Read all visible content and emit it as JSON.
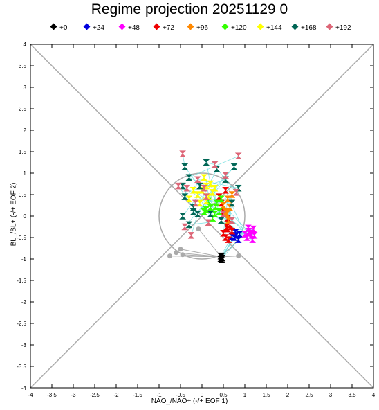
{
  "chart_data": {
    "type": "scatter",
    "title": "Regime projection 20251129 0",
    "xlabel": "NAO_/NAO+ (-/+ EOF 1)",
    "ylabel": "BL_/BL+ (-/+ EOF 2)",
    "xlim": [
      -4,
      4
    ],
    "ylim": [
      -4,
      4
    ],
    "xticks": [
      "-4",
      "-3.5",
      "-3",
      "-2.5",
      "-2",
      "-1.5",
      "-1",
      "-0.5",
      "0",
      "0.5",
      "1",
      "1.5",
      "2",
      "2.5",
      "3",
      "3.5",
      "4"
    ],
    "yticks": [
      "4",
      "3.5",
      "3",
      "2.5",
      "2",
      "1.5",
      "1",
      "0.5",
      "0",
      "-0.5",
      "-1",
      "-1.5",
      "-2",
      "-2.5",
      "-3",
      "-3.5",
      "-4"
    ],
    "legend_position": "top",
    "reference_circle_radius": 1,
    "series": [
      {
        "name": "+0",
        "color": "#000000",
        "points": [
          [
            0.45,
            -0.95
          ],
          [
            0.43,
            -1.0
          ],
          [
            0.47,
            -0.98
          ],
          [
            0.44,
            -0.93
          ],
          [
            0.46,
            -1.02
          ]
        ]
      },
      {
        "name": "+24",
        "color": "#0000dd",
        "points": [
          [
            0.75,
            -0.5
          ],
          [
            0.8,
            -0.45
          ],
          [
            0.85,
            -0.55
          ],
          [
            0.7,
            -0.48
          ],
          [
            0.78,
            -0.38
          ],
          [
            0.88,
            -0.42
          ]
        ]
      },
      {
        "name": "+48",
        "color": "#ff00ff",
        "points": [
          [
            1.1,
            -0.35
          ],
          [
            1.15,
            -0.45
          ],
          [
            1.2,
            -0.3
          ],
          [
            1.05,
            -0.5
          ],
          [
            1.18,
            -0.55
          ],
          [
            1.12,
            -0.4
          ],
          [
            1.22,
            -0.45
          ],
          [
            1.08,
            -0.28
          ],
          [
            1.0,
            -0.42
          ]
        ]
      },
      {
        "name": "+72",
        "color": "#ee0000",
        "points": [
          [
            0.5,
            -0.4
          ],
          [
            0.6,
            -0.3
          ],
          [
            0.55,
            -0.5
          ],
          [
            0.65,
            -0.2
          ],
          [
            0.5,
            0.1
          ],
          [
            0.45,
            0.3
          ],
          [
            0.6,
            -0.05
          ],
          [
            0.7,
            -0.35
          ],
          [
            0.55,
            0.6
          ],
          [
            0.4,
            0.45
          ],
          [
            0.62,
            -0.55
          ],
          [
            0.58,
            -0.25
          ]
        ]
      },
      {
        "name": "+96",
        "color": "#ff8800",
        "points": [
          [
            0.6,
            0.4
          ],
          [
            0.65,
            0.2
          ],
          [
            0.55,
            0.1
          ],
          [
            0.7,
            0.5
          ],
          [
            0.62,
            -0.1
          ],
          [
            0.5,
            0.25
          ],
          [
            0.68,
            0.3
          ],
          [
            0.58,
            0.05
          ]
        ]
      },
      {
        "name": "+120",
        "color": "#33ff00",
        "points": [
          [
            0.2,
            0.2
          ],
          [
            0.3,
            0.05
          ],
          [
            0.1,
            0.15
          ],
          [
            0.35,
            0.3
          ],
          [
            0.4,
            0.1
          ],
          [
            0.25,
            -0.05
          ],
          [
            0.15,
            0.35
          ],
          [
            0.05,
            0.1
          ],
          [
            0.32,
            0.22
          ],
          [
            0.45,
            0.4
          ]
        ]
      },
      {
        "name": "+144",
        "color": "#ffff00",
        "points": [
          [
            0.0,
            0.6
          ],
          [
            0.1,
            0.7
          ],
          [
            -0.1,
            0.5
          ],
          [
            0.05,
            0.9
          ],
          [
            0.2,
            0.75
          ],
          [
            -0.05,
            0.3
          ],
          [
            -0.2,
            0.6
          ],
          [
            0.15,
            0.45
          ],
          [
            0.3,
            0.65
          ],
          [
            0.1,
            0.35
          ],
          [
            -0.3,
            0.4
          ],
          [
            0.25,
            0.55
          ]
        ]
      },
      {
        "name": "+168",
        "color": "#006655",
        "points": [
          [
            -0.4,
            1.15
          ],
          [
            -0.3,
            0.9
          ],
          [
            -0.2,
            0.2
          ],
          [
            -0.4,
            0.45
          ],
          [
            0.1,
            1.25
          ],
          [
            0.35,
            1.1
          ],
          [
            0.55,
            0.85
          ],
          [
            0.75,
            1.15
          ],
          [
            0.85,
            0.65
          ],
          [
            0.7,
            0.3
          ],
          [
            -0.45,
            0.7
          ],
          [
            -0.1,
            0.05
          ],
          [
            -0.3,
            -0.2
          ],
          [
            0.45,
            -0.1
          ],
          [
            -0.2,
            0.1
          ],
          [
            -0.45,
            0.0
          ],
          [
            -0.05,
            0.7
          ],
          [
            0.2,
            0.05
          ]
        ]
      },
      {
        "name": "+192",
        "color": "#dd6677",
        "points": [
          [
            -0.45,
            1.45
          ],
          [
            0.85,
            1.4
          ],
          [
            -0.55,
            0.7
          ],
          [
            -0.35,
            0.65
          ],
          [
            0.3,
            1.2
          ],
          [
            0.8,
            0.55
          ],
          [
            -0.4,
            -0.25
          ],
          [
            0.1,
            0.45
          ],
          [
            -0.1,
            0.85
          ],
          [
            0.55,
            0.95
          ],
          [
            0.5,
            0.05
          ],
          [
            -0.25,
            -0.45
          ],
          [
            0.15,
            -0.15
          ],
          [
            -0.15,
            0.3
          ],
          [
            0.7,
            -0.1
          ],
          [
            0.05,
            0.65
          ]
        ]
      },
      {
        "name": "",
        "color": "#aaaaaa",
        "points": [
          [
            -0.75,
            -0.93
          ],
          [
            -0.6,
            -0.85
          ],
          [
            -0.5,
            -0.77
          ],
          [
            -0.45,
            -0.9
          ],
          [
            -0.08,
            -0.3
          ],
          [
            0.45,
            -0.93
          ],
          [
            0.85,
            -0.93
          ]
        ]
      }
    ],
    "legend": [
      "+0",
      "+24",
      "+48",
      "+72",
      "+96",
      "+120",
      "+144",
      "+168",
      "+192"
    ]
  }
}
